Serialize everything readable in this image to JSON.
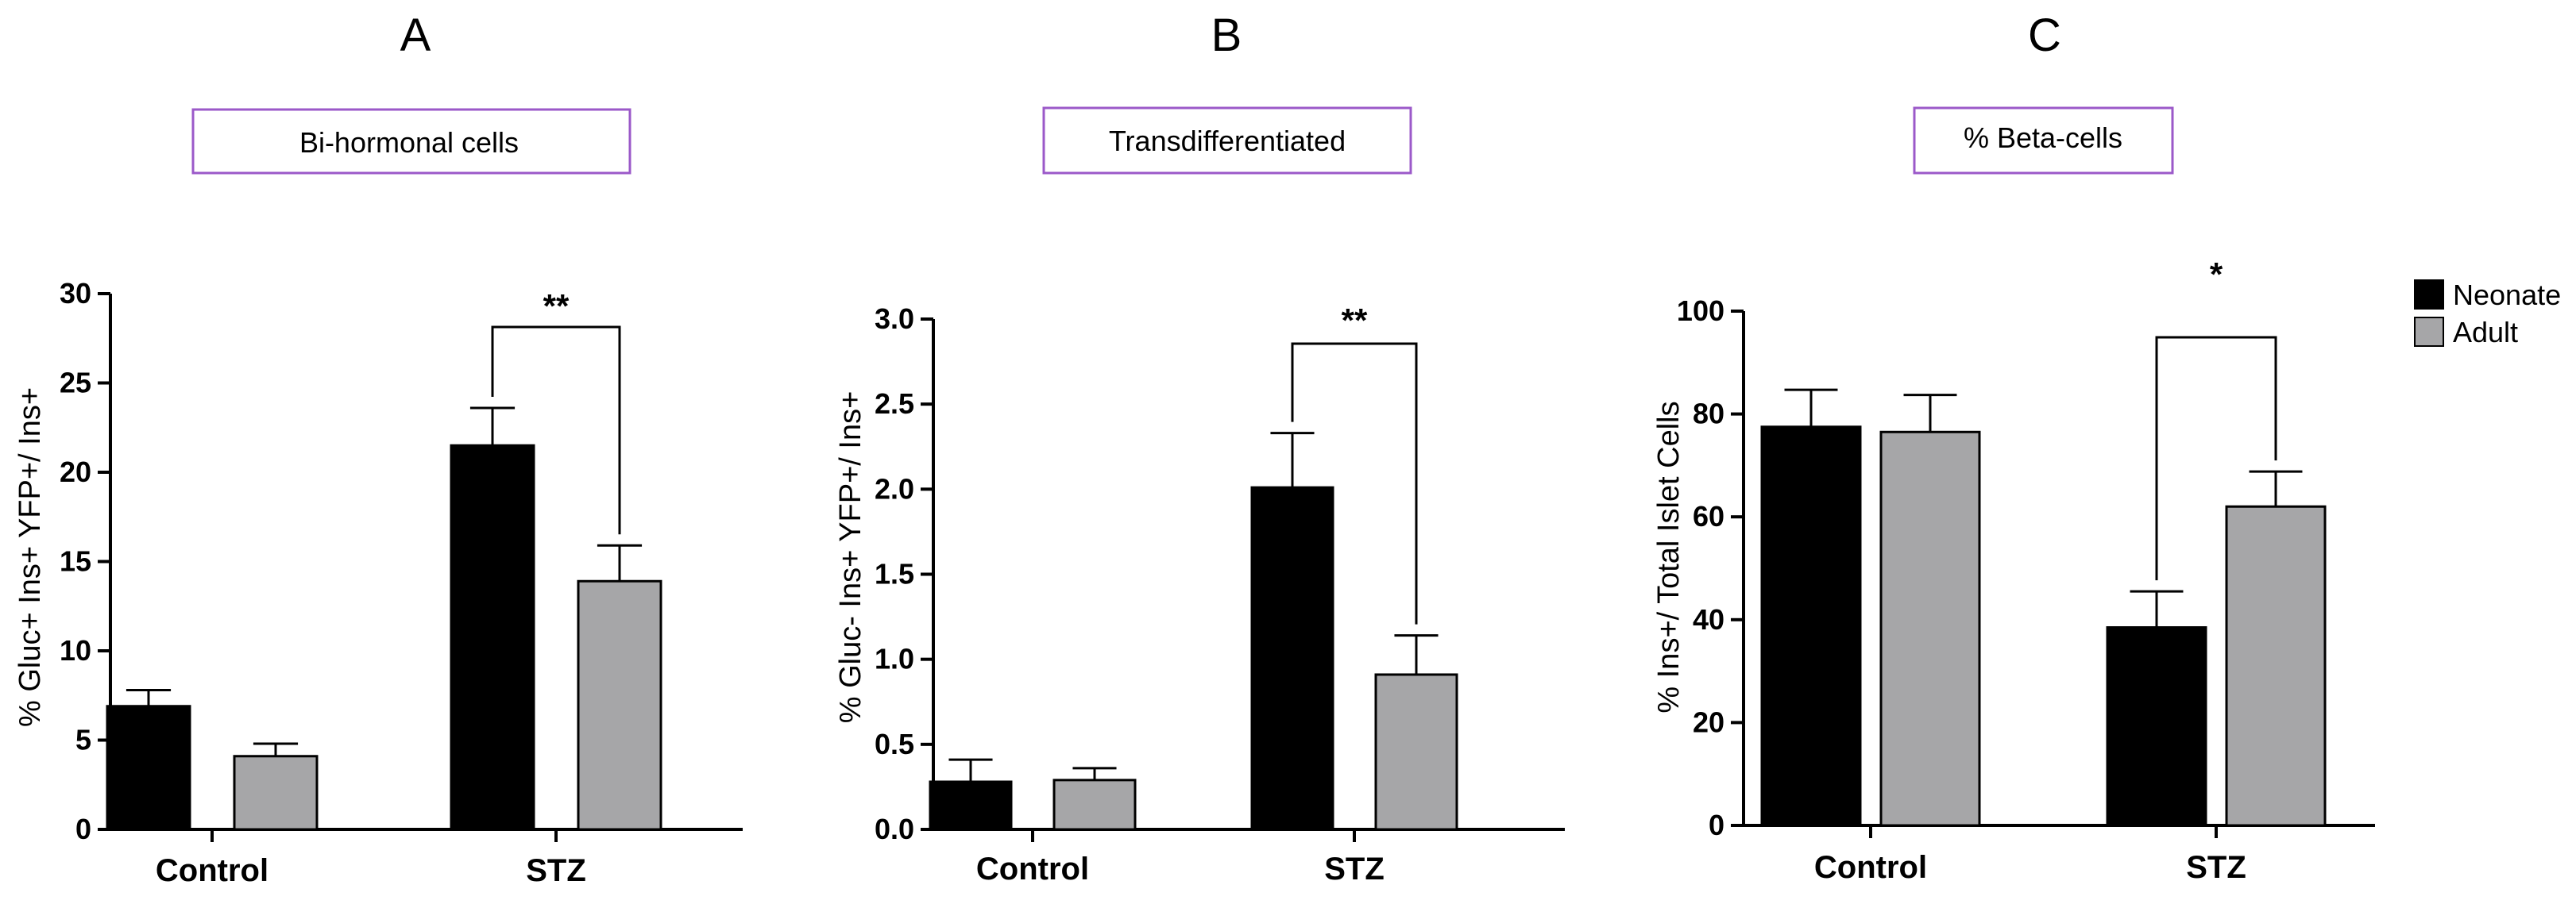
{
  "legend": [
    {
      "label": "Neonate",
      "color": "#000000"
    },
    {
      "label": "Adult",
      "color": "#a6a6a8"
    }
  ],
  "colors": {
    "neonate": "#000000",
    "adult": "#a6a6a8",
    "subtitle_border": "#9b59c9",
    "axis": "#000000"
  },
  "chart_data": [
    {
      "type": "bar",
      "panel": "A",
      "title": "Bi-hormonal cells",
      "ylabel": "% Gluc+ Ins+ YFP+/ Ins+",
      "categories": [
        "Control",
        "STZ"
      ],
      "ylim": [
        0,
        30
      ],
      "yticks": [
        0,
        5,
        10,
        15,
        20,
        25,
        30
      ],
      "ytick_labels": [
        "0",
        "5",
        "10",
        "15",
        "20",
        "25",
        "30"
      ],
      "series": [
        {
          "name": "Neonate",
          "values": [
            6.9,
            21.5
          ],
          "errors": [
            0.9,
            2.1
          ]
        },
        {
          "name": "Adult",
          "values": [
            4.1,
            13.9
          ],
          "errors": [
            0.7,
            2.0
          ]
        }
      ],
      "significance": {
        "category": "STZ",
        "label": "**"
      }
    },
    {
      "type": "bar",
      "panel": "B",
      "title": "Transdifferentiated",
      "ylabel": "% Gluc- Ins+ YFP+/ Ins+",
      "categories": [
        "Control",
        "STZ"
      ],
      "ylim": [
        0,
        3.0
      ],
      "yticks": [
        0,
        0.5,
        1.0,
        1.5,
        2.0,
        2.5,
        3.0
      ],
      "ytick_labels": [
        "0.0",
        "0.5",
        "1.0",
        "1.5",
        "2.0",
        "2.5",
        "3.0"
      ],
      "series": [
        {
          "name": "Neonate",
          "values": [
            0.28,
            2.01
          ],
          "errors": [
            0.13,
            0.32
          ]
        },
        {
          "name": "Adult",
          "values": [
            0.29,
            0.91
          ],
          "errors": [
            0.07,
            0.23
          ]
        }
      ],
      "significance": {
        "category": "STZ",
        "label": "**"
      }
    },
    {
      "type": "bar",
      "panel": "C",
      "title": "% Beta-cells",
      "ylabel": "% Ins+/ Total Islet Cells",
      "categories": [
        "Control",
        "STZ"
      ],
      "ylim": [
        0,
        100
      ],
      "yticks": [
        0,
        20,
        40,
        60,
        80,
        100
      ],
      "ytick_labels": [
        "0",
        "20",
        "40",
        "60",
        "80",
        "100"
      ],
      "series": [
        {
          "name": "Neonate",
          "values": [
            77.5,
            38.5
          ],
          "errors": [
            7.2,
            7.0
          ]
        },
        {
          "name": "Adult",
          "values": [
            76.5,
            62.0
          ],
          "errors": [
            7.2,
            6.8
          ]
        }
      ],
      "significance": {
        "category": "STZ",
        "label": "*"
      }
    }
  ]
}
